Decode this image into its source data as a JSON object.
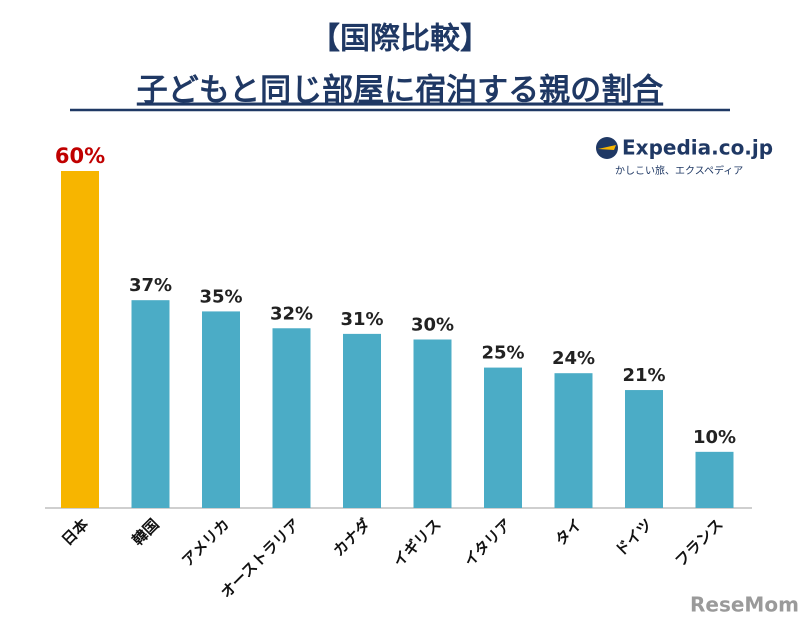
{
  "chart_data": {
    "type": "bar",
    "title": "【国際比較】",
    "subtitle": "子どもと同じ部屋に宿泊する親の割合",
    "categories": [
      "日本",
      "韓国",
      "アメリカ",
      "オーストラリア",
      "カナダ",
      "イギリス",
      "イタリア",
      "タイ",
      "ドイツ",
      "フランス"
    ],
    "values": [
      60,
      37,
      35,
      32,
      31,
      30,
      25,
      24,
      21,
      10
    ],
    "value_labels": [
      "60%",
      "37%",
      "35%",
      "32%",
      "31%",
      "30%",
      "25%",
      "24%",
      "21%",
      "10%"
    ],
    "colors": [
      "#f7b500",
      "#4bacc6",
      "#4bacc6",
      "#4bacc6",
      "#4bacc6",
      "#4bacc6",
      "#4bacc6",
      "#4bacc6",
      "#4bacc6",
      "#4bacc6"
    ],
    "value_label_colors": [
      "#c00000",
      "#222222",
      "#222222",
      "#222222",
      "#222222",
      "#222222",
      "#222222",
      "#222222",
      "#222222",
      "#222222"
    ],
    "logo": "Expedia.co.jp",
    "logo_tagline": "かしこい旅、エクスペディア",
    "watermark": "ReseMom"
  }
}
